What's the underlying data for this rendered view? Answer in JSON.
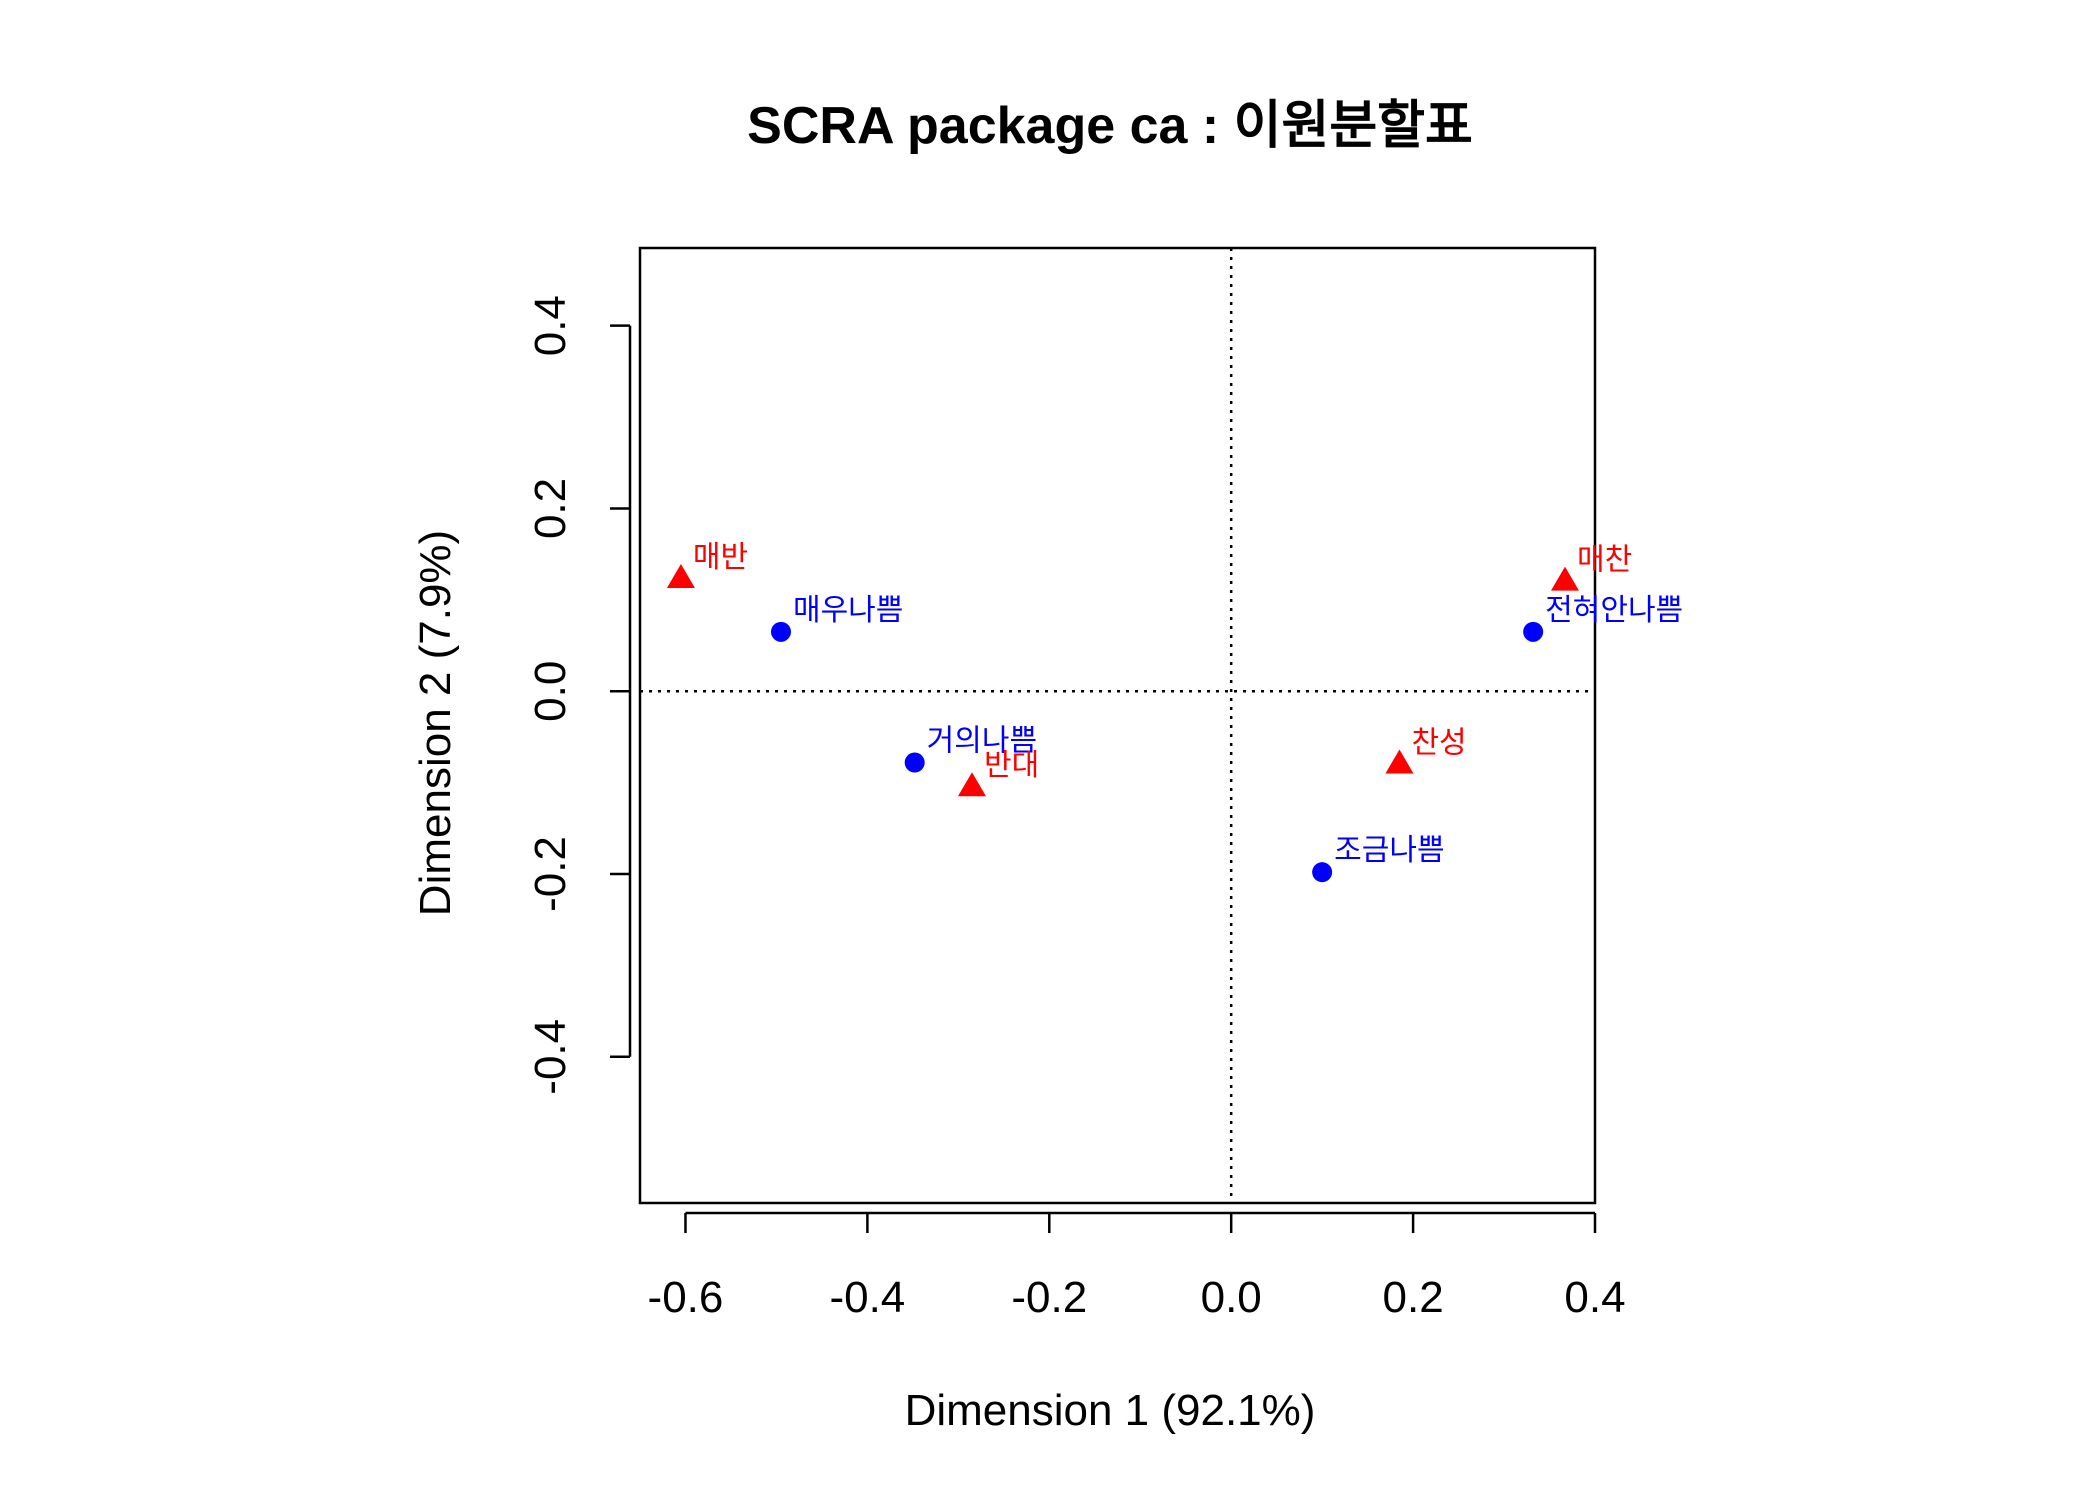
{
  "chart_data": {
    "type": "scatter",
    "title": "SCRA package ca : 이원분할표",
    "xlabel": "Dimension 1 (92.1%)",
    "ylabel": "Dimension 2 (7.9%)",
    "xlim": [
      -0.65,
      0.4
    ],
    "ylim": [
      -0.56,
      0.485
    ],
    "xticks": [
      -0.6,
      -0.4,
      -0.2,
      0.0,
      0.2,
      0.4
    ],
    "yticks": [
      -0.4,
      -0.2,
      0.0,
      0.2,
      0.4
    ],
    "xtick_labels": [
      "-0.6",
      "-0.4",
      "-0.2",
      "0.0",
      "0.2",
      "0.4"
    ],
    "ytick_labels": [
      "-0.4",
      "-0.2",
      "0.0",
      "0.2",
      "0.4"
    ],
    "reference_lines": {
      "x": 0,
      "y": 0,
      "style": "dotted"
    },
    "grid": false,
    "series": [
      {
        "marker": "circle",
        "color": "#0000ff",
        "points": [
          {
            "label": "매우나쁨",
            "x": -0.495,
            "y": 0.065
          },
          {
            "label": "거의나쁨",
            "x": -0.348,
            "y": -0.078
          },
          {
            "label": "조금나쁨",
            "x": 0.1,
            "y": -0.198
          },
          {
            "label": "전혀안나쁨",
            "x": 0.332,
            "y": 0.065
          }
        ]
      },
      {
        "marker": "triangle",
        "color": "#ff0000",
        "points": [
          {
            "label": "매반",
            "x": -0.605,
            "y": 0.123
          },
          {
            "label": "반대",
            "x": -0.285,
            "y": -0.105
          },
          {
            "label": "찬성",
            "x": 0.185,
            "y": -0.08
          },
          {
            "label": "매찬",
            "x": 0.367,
            "y": 0.12
          }
        ]
      }
    ]
  }
}
